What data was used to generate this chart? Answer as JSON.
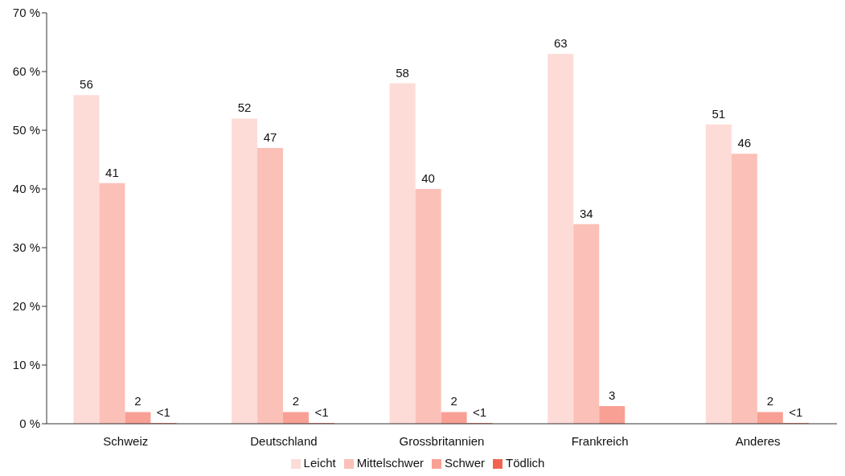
{
  "chart_data": {
    "type": "bar",
    "categories": [
      "Schweiz",
      "Deutschland",
      "Grossbritannien",
      "Frankreich",
      "Anderes"
    ],
    "series": [
      {
        "name": "Leicht",
        "color": "#fddcd8",
        "values": [
          56,
          52,
          58,
          63,
          51
        ],
        "value_labels": [
          "56",
          "52",
          "58",
          "63",
          "51"
        ]
      },
      {
        "name": "Mittelschwer",
        "color": "#fbc0b7",
        "values": [
          41,
          47,
          40,
          34,
          46
        ],
        "value_labels": [
          "41",
          "47",
          "40",
          "34",
          "46"
        ]
      },
      {
        "name": "Schwer",
        "color": "#f9a095",
        "values": [
          2,
          2,
          2,
          3,
          2
        ],
        "value_labels": [
          "2",
          "2",
          "2",
          "3",
          "2"
        ]
      },
      {
        "name": "Tödlich",
        "color": "#f26452",
        "values": [
          0.1,
          0.1,
          0.1,
          null,
          0.1
        ],
        "value_labels": [
          "<1",
          "<1",
          "<1",
          null,
          "<1"
        ]
      }
    ],
    "ylim": [
      0,
      70
    ],
    "yticks": [
      {
        "value": 0,
        "label": "0 %"
      },
      {
        "value": 10,
        "label": "10 %"
      },
      {
        "value": 20,
        "label": "20 %"
      },
      {
        "value": 30,
        "label": "30 %"
      },
      {
        "value": 40,
        "label": "40 %"
      },
      {
        "value": 50,
        "label": "50 %"
      },
      {
        "value": 60,
        "label": "60 %"
      },
      {
        "value": 70,
        "label": "70 %"
      }
    ],
    "grid": false,
    "legend": "bottom"
  }
}
